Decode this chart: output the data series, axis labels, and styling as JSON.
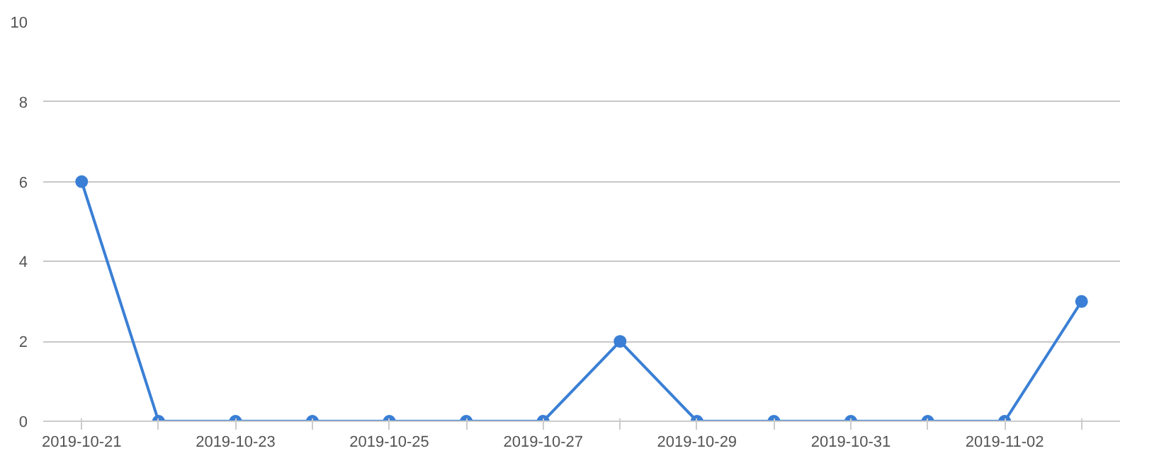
{
  "chart_data": {
    "type": "line",
    "categories": [
      "2019-10-21",
      null,
      "2019-10-23",
      null,
      "2019-10-25",
      null,
      "2019-10-27",
      null,
      "2019-10-29",
      null,
      "2019-10-31",
      null,
      "2019-11-02",
      null
    ],
    "series": [
      {
        "color": "#3a7fd5",
        "values": [
          6,
          0,
          0,
          0,
          0,
          0,
          0,
          2,
          0,
          0,
          0,
          0,
          0,
          3
        ]
      }
    ],
    "ylim": [
      0,
      10
    ],
    "yticks": [
      0,
      2,
      4,
      6,
      8,
      10
    ],
    "grid": "y",
    "marker": "circle",
    "line_style": "solid"
  }
}
